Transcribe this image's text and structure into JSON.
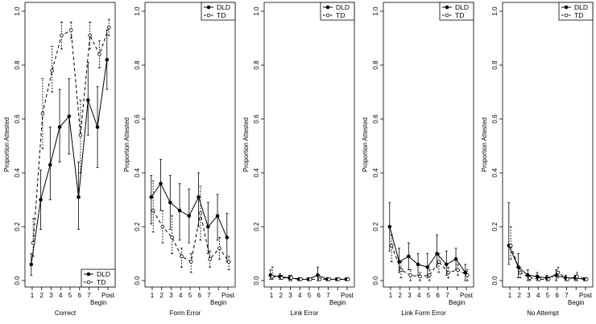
{
  "figure": {
    "y_axis_label": "Proportion Attested"
  },
  "chart_data": [
    {
      "type": "line",
      "xlabel": "Correct",
      "ylabel": "Proportion Attested",
      "ylim": [
        0,
        1.0
      ],
      "y_ticks": [
        "0.0",
        "0.2",
        "0.4",
        "0.6",
        "0.8",
        "1.0"
      ],
      "x": [
        "1",
        "2",
        "3",
        "4",
        "5",
        "6",
        "7",
        "8",
        "9"
      ],
      "x_tick_labels": [
        "1",
        "2",
        "3",
        "4",
        "5",
        "6",
        "7",
        "Begin",
        "Post"
      ],
      "legend": {
        "position": "bottom-right",
        "entries": [
          "DLD",
          "TD"
        ]
      },
      "series": [
        {
          "name": "DLD",
          "style": "solid",
          "marker": "filled-circle",
          "values": [
            0.06,
            0.3,
            0.43,
            0.57,
            0.61,
            0.31,
            0.67,
            0.57,
            0.82
          ],
          "lower": [
            0.02,
            0.19,
            0.3,
            0.44,
            0.47,
            0.19,
            0.54,
            0.42,
            0.71
          ],
          "upper": [
            0.1,
            0.41,
            0.57,
            0.71,
            0.75,
            0.44,
            0.81,
            0.72,
            0.93
          ]
        },
        {
          "name": "TD",
          "style": "dashed",
          "marker": "open-circle",
          "values": [
            0.14,
            0.62,
            0.78,
            0.91,
            0.93,
            0.54,
            0.91,
            0.84,
            0.94
          ],
          "lower": [
            0.09,
            0.49,
            0.7,
            0.86,
            0.9,
            0.4,
            0.86,
            0.79,
            0.91
          ],
          "upper": [
            0.23,
            0.75,
            0.87,
            0.96,
            0.96,
            0.67,
            0.96,
            0.89,
            0.97
          ]
        }
      ]
    },
    {
      "type": "line",
      "xlabel": "Form Error",
      "ylabel": "Proportion Attested",
      "ylim": [
        0,
        1.0
      ],
      "y_ticks": [
        "0.0",
        "0.2",
        "0.4",
        "0.6",
        "0.8",
        "1.0"
      ],
      "x": [
        "1",
        "2",
        "3",
        "4",
        "5",
        "6",
        "7",
        "8",
        "9"
      ],
      "x_tick_labels": [
        "1",
        "2",
        "3",
        "4",
        "5",
        "6",
        "7",
        "Begin",
        "Post"
      ],
      "legend": {
        "position": "top-right",
        "entries": [
          "DLD",
          "TD"
        ]
      },
      "series": [
        {
          "name": "DLD",
          "style": "solid",
          "marker": "filled-circle",
          "values": [
            0.31,
            0.36,
            0.29,
            0.26,
            0.24,
            0.31,
            0.2,
            0.24,
            0.16
          ],
          "lower": [
            0.21,
            0.26,
            0.19,
            0.15,
            0.14,
            0.2,
            0.1,
            0.15,
            0.07
          ],
          "upper": [
            0.39,
            0.45,
            0.39,
            0.36,
            0.34,
            0.4,
            0.29,
            0.32,
            0.25
          ]
        },
        {
          "name": "TD",
          "style": "dashed",
          "marker": "open-circle",
          "values": [
            0.26,
            0.2,
            0.16,
            0.09,
            0.07,
            0.25,
            0.08,
            0.12,
            0.07
          ],
          "lower": [
            0.18,
            0.14,
            0.1,
            0.05,
            0.03,
            0.15,
            0.05,
            0.08,
            0.04
          ],
          "upper": [
            0.37,
            0.26,
            0.24,
            0.12,
            0.1,
            0.35,
            0.11,
            0.16,
            0.09
          ]
        }
      ]
    },
    {
      "type": "line",
      "xlabel": "Link Error",
      "ylabel": "Proportion Attested",
      "ylim": [
        0,
        1.0
      ],
      "y_ticks": [
        "0.0",
        "0.2",
        "0.4",
        "0.6",
        "0.8",
        "1.0"
      ],
      "x": [
        "1",
        "2",
        "3",
        "4",
        "5",
        "6",
        "7",
        "8",
        "9"
      ],
      "x_tick_labels": [
        "1",
        "2",
        "3",
        "4",
        "5",
        "6",
        "7",
        "Begin",
        "Post"
      ],
      "legend": {
        "position": "top-right",
        "entries": [
          "DLD",
          "TD"
        ]
      },
      "series": [
        {
          "name": "DLD",
          "style": "solid",
          "marker": "filled-circle",
          "values": [
            0.02,
            0.015,
            0.01,
            0.005,
            0.005,
            0.02,
            0.005,
            0.005,
            0.005
          ],
          "lower": [
            0.005,
            0.005,
            0.0,
            0.0,
            0.0,
            0.0,
            0.0,
            0.0,
            0.0
          ],
          "upper": [
            0.04,
            0.025,
            0.02,
            0.01,
            0.01,
            0.05,
            0.01,
            0.01,
            0.01
          ]
        },
        {
          "name": "TD",
          "style": "dashed",
          "marker": "open-circle",
          "values": [
            0.015,
            0.01,
            0.01,
            0.005,
            0.005,
            0.005,
            0.005,
            0.005,
            0.005
          ],
          "lower": [
            0.005,
            0.005,
            0.0,
            0.0,
            0.0,
            0.0,
            0.0,
            0.0,
            0.0
          ],
          "upper": [
            0.05,
            0.02,
            0.02,
            0.01,
            0.01,
            0.01,
            0.01,
            0.01,
            0.01
          ]
        }
      ]
    },
    {
      "type": "line",
      "xlabel": "Link Form Error",
      "ylabel": "Proportion Attested",
      "ylim": [
        0,
        1.0
      ],
      "y_ticks": [
        "0.0",
        "0.2",
        "0.4",
        "0.6",
        "0.8",
        "1.0"
      ],
      "x": [
        "1",
        "2",
        "3",
        "4",
        "5",
        "6",
        "7",
        "8",
        "9"
      ],
      "x_tick_labels": [
        "1",
        "2",
        "3",
        "4",
        "5",
        "6",
        "7",
        "Begin",
        "Post"
      ],
      "legend": {
        "position": "top-right",
        "entries": [
          "DLD",
          "TD"
        ]
      },
      "series": [
        {
          "name": "DLD",
          "style": "solid",
          "marker": "filled-circle",
          "values": [
            0.2,
            0.07,
            0.09,
            0.06,
            0.05,
            0.1,
            0.06,
            0.08,
            0.03
          ],
          "lower": [
            0.11,
            0.03,
            0.04,
            0.02,
            0.01,
            0.05,
            0.02,
            0.04,
            0.0
          ],
          "upper": [
            0.29,
            0.12,
            0.14,
            0.1,
            0.1,
            0.17,
            0.11,
            0.12,
            0.06
          ]
        },
        {
          "name": "TD",
          "style": "dashed",
          "marker": "open-circle",
          "values": [
            0.13,
            0.04,
            0.02,
            0.015,
            0.02,
            0.07,
            0.03,
            0.04,
            0.02
          ],
          "lower": [
            0.07,
            0.01,
            0.0,
            0.0,
            0.0,
            0.03,
            0.01,
            0.02,
            0.0
          ],
          "upper": [
            0.17,
            0.07,
            0.04,
            0.03,
            0.04,
            0.1,
            0.05,
            0.06,
            0.04
          ]
        }
      ]
    },
    {
      "type": "line",
      "xlabel": "No Attempt",
      "ylabel": "Proportion Attested",
      "ylim": [
        0,
        1.0
      ],
      "y_ticks": [
        "0.0",
        "0.2",
        "0.4",
        "0.6",
        "0.8",
        "1.0"
      ],
      "x": [
        "1",
        "2",
        "3",
        "4",
        "5",
        "6",
        "7",
        "8",
        "9"
      ],
      "x_tick_labels": [
        "1",
        "2",
        "3",
        "4",
        "5",
        "6",
        "7",
        "Begin",
        "Post"
      ],
      "legend": {
        "position": "top-right",
        "entries": [
          "DLD",
          "TD"
        ]
      },
      "series": [
        {
          "name": "DLD",
          "style": "solid",
          "marker": "filled-circle",
          "values": [
            0.13,
            0.05,
            0.02,
            0.015,
            0.01,
            0.02,
            0.01,
            0.01,
            0.005
          ],
          "lower": [
            0.06,
            0.01,
            0.0,
            0.0,
            0.0,
            0.0,
            0.0,
            0.0,
            0.0
          ],
          "upper": [
            0.29,
            0.1,
            0.04,
            0.03,
            0.02,
            0.04,
            0.02,
            0.02,
            0.01
          ]
        },
        {
          "name": "TD",
          "style": "dashed",
          "marker": "open-circle",
          "values": [
            0.13,
            0.03,
            0.01,
            0.005,
            0.005,
            0.03,
            0.005,
            0.015,
            0.005
          ],
          "lower": [
            0.08,
            0.01,
            0.0,
            0.0,
            0.0,
            0.01,
            0.0,
            0.0,
            0.0
          ],
          "upper": [
            0.2,
            0.05,
            0.02,
            0.01,
            0.01,
            0.05,
            0.01,
            0.03,
            0.01
          ]
        }
      ]
    }
  ]
}
